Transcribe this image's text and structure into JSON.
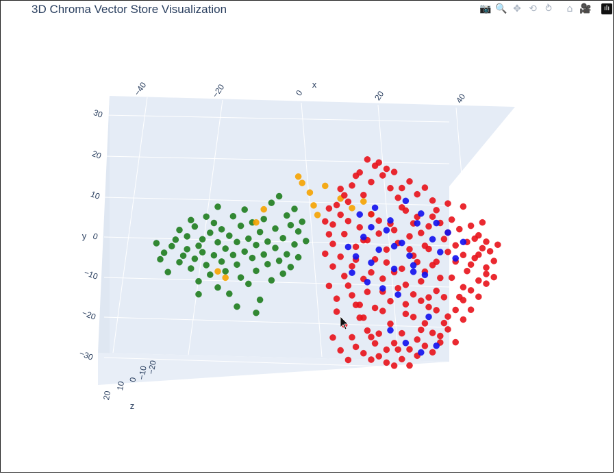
{
  "title": "3D Chroma Vector Store Visualization",
  "modebar": [
    {
      "name": "camera-icon",
      "glyph": "📷"
    },
    {
      "name": "zoom-icon",
      "glyph": "🔍"
    },
    {
      "name": "pan-icon",
      "glyph": "✥"
    },
    {
      "name": "orbit-rotation-icon",
      "glyph": "⟲"
    },
    {
      "name": "turntable-rotation-icon",
      "glyph": "⥁"
    },
    {
      "name": "home-icon",
      "glyph": "⌂"
    },
    {
      "name": "camera-last-save-icon",
      "glyph": "🎥"
    },
    {
      "name": "plotly-logo-icon",
      "glyph": "ılı"
    }
  ],
  "colors": {
    "green": "#1e7d1e",
    "orange": "#f5a300",
    "red": "#e8121a",
    "blue": "#1010ee",
    "axis_text": "#2a3f5f",
    "pane": "#e5ecf6"
  },
  "chart_data": {
    "type": "scatter",
    "title": "3D Chroma Vector Store Visualization",
    "xlabel": "x",
    "ylabel": "y",
    "zlabel": "z",
    "x_ticks": [
      "−40",
      "−20",
      "0",
      "20",
      "40"
    ],
    "y_ticks": [
      "30",
      "20",
      "10",
      "0",
      "−10",
      "−20",
      "−30"
    ],
    "z_ticks": [
      "20",
      "10",
      "0",
      "−10",
      "−20"
    ],
    "xlim": [
      -50,
      50
    ],
    "ylim": [
      -35,
      35
    ],
    "legend": "none",
    "series": [
      {
        "color": "green",
        "points": [
          [
            -35,
            -1
          ],
          [
            -34,
            1
          ],
          [
            -32,
            3
          ],
          [
            -31,
            5
          ],
          [
            -30,
            -2
          ],
          [
            -29,
            0
          ],
          [
            -28,
            2
          ],
          [
            -28,
            6
          ],
          [
            -27,
            -4
          ],
          [
            -26,
            -1
          ],
          [
            -26,
            9
          ],
          [
            -25,
            3
          ],
          [
            -25,
            -8
          ],
          [
            -24,
            1
          ],
          [
            -24,
            5
          ],
          [
            -23,
            -3
          ],
          [
            -23,
            12
          ],
          [
            -22,
            7
          ],
          [
            -22,
            -6
          ],
          [
            -21,
            0
          ],
          [
            -21,
            10
          ],
          [
            -20,
            4
          ],
          [
            -20,
            -10
          ],
          [
            -19,
            -2
          ],
          [
            -19,
            8
          ],
          [
            -18,
            2
          ],
          [
            -18,
            -5
          ],
          [
            -17,
            6
          ],
          [
            -17,
            -12
          ],
          [
            -16,
            0
          ],
          [
            -16,
            12
          ],
          [
            -15,
            -3
          ],
          [
            -15,
            4
          ],
          [
            -14,
            9
          ],
          [
            -14,
            -7
          ],
          [
            -13,
            1
          ],
          [
            -13,
            14
          ],
          [
            -12,
            -9
          ],
          [
            -12,
            5
          ],
          [
            -11,
            -1
          ],
          [
            -11,
            10
          ],
          [
            -10,
            3
          ],
          [
            -10,
            -5
          ],
          [
            -9,
            7
          ],
          [
            -9,
            -14
          ],
          [
            -8,
            0
          ],
          [
            -8,
            11
          ],
          [
            -7,
            -3
          ],
          [
            -7,
            4
          ],
          [
            -6,
            16
          ],
          [
            -6,
            -8
          ],
          [
            -5,
            2
          ],
          [
            -5,
            8
          ],
          [
            -4,
            -2
          ],
          [
            -4,
            18
          ],
          [
            -3,
            5
          ],
          [
            -3,
            -6
          ],
          [
            -2,
            12
          ],
          [
            -2,
            0
          ],
          [
            -1,
            9
          ],
          [
            -1,
            -4
          ],
          [
            0,
            3
          ],
          [
            0,
            14
          ],
          [
            1,
            7
          ],
          [
            1,
            -1
          ],
          [
            2,
            10
          ],
          [
            3,
            4
          ],
          [
            -30,
            8
          ],
          [
            -27,
            11
          ],
          [
            -33,
            -5
          ],
          [
            -25,
            -12
          ],
          [
            -20,
            15
          ],
          [
            -15,
            -16
          ],
          [
            -10,
            -18
          ],
          [
            -36,
            4
          ]
        ]
      },
      {
        "color": "orange",
        "points": [
          [
            -20,
            -5
          ],
          [
            -18,
            -7
          ],
          [
            -10,
            10
          ],
          [
            -8,
            14
          ],
          [
            1,
            24
          ],
          [
            2,
            22
          ],
          [
            4,
            19
          ],
          [
            5,
            15
          ],
          [
            6,
            12
          ],
          [
            8,
            21
          ],
          [
            12,
            17
          ],
          [
            15,
            14
          ],
          [
            18,
            16
          ],
          [
            20,
            12
          ]
        ]
      },
      {
        "color": "red",
        "points": [
          [
            10,
            3
          ],
          [
            12,
            -1
          ],
          [
            13,
            6
          ],
          [
            14,
            10
          ],
          [
            15,
            -4
          ],
          [
            16,
            2
          ],
          [
            17,
            8
          ],
          [
            18,
            -8
          ],
          [
            19,
            4
          ],
          [
            20,
            12
          ],
          [
            21,
            -2
          ],
          [
            22,
            6
          ],
          [
            23,
            -12
          ],
          [
            24,
            1
          ],
          [
            25,
            9
          ],
          [
            26,
            -6
          ],
          [
            27,
            3
          ],
          [
            28,
            14
          ],
          [
            29,
            -10
          ],
          [
            30,
            5
          ],
          [
            31,
            -1
          ],
          [
            32,
            11
          ],
          [
            33,
            -15
          ],
          [
            34,
            2
          ],
          [
            35,
            8
          ],
          [
            36,
            -4
          ],
          [
            37,
            13
          ],
          [
            38,
            -8
          ],
          [
            39,
            4
          ],
          [
            40,
            0
          ],
          [
            41,
            10
          ],
          [
            42,
            -3
          ],
          [
            43,
            7
          ],
          [
            44,
            -11
          ],
          [
            45,
            3
          ],
          [
            46,
            8
          ],
          [
            47,
            -2
          ],
          [
            48,
            5
          ],
          [
            49,
            1
          ],
          [
            50,
            -5
          ],
          [
            11,
            -18
          ],
          [
            13,
            -22
          ],
          [
            15,
            -26
          ],
          [
            17,
            -20
          ],
          [
            19,
            -24
          ],
          [
            21,
            -28
          ],
          [
            23,
            -18
          ],
          [
            25,
            -22
          ],
          [
            27,
            -30
          ],
          [
            29,
            -16
          ],
          [
            31,
            -20
          ],
          [
            33,
            -24
          ],
          [
            35,
            -14
          ],
          [
            37,
            -18
          ],
          [
            39,
            -22
          ],
          [
            12,
            20
          ],
          [
            16,
            24
          ],
          [
            20,
            22
          ],
          [
            24,
            26
          ],
          [
            28,
            20
          ],
          [
            32,
            18
          ],
          [
            36,
            16
          ],
          [
            40,
            15
          ],
          [
            44,
            14
          ],
          [
            14,
            16
          ],
          [
            18,
            18
          ],
          [
            22,
            28
          ],
          [
            26,
            25
          ],
          [
            30,
            22
          ],
          [
            34,
            20
          ],
          [
            9,
            -10
          ],
          [
            11,
            -14
          ],
          [
            13,
            -7
          ],
          [
            15,
            -13
          ],
          [
            17,
            -16
          ],
          [
            19,
            -12
          ],
          [
            21,
            -17
          ],
          [
            23,
            -8
          ],
          [
            25,
            -15
          ],
          [
            27,
            -11
          ],
          [
            29,
            -19
          ],
          [
            31,
            -13
          ],
          [
            33,
            -9
          ],
          [
            35,
            -17
          ],
          [
            37,
            -12
          ],
          [
            8,
            0
          ],
          [
            9,
            6
          ],
          [
            10,
            -4
          ],
          [
            12,
            12
          ],
          [
            14,
            -10
          ],
          [
            16,
            -16
          ],
          [
            18,
            -20
          ],
          [
            20,
            -26
          ],
          [
            22,
            -32
          ],
          [
            24,
            -34
          ],
          [
            26,
            -28
          ],
          [
            28,
            -25
          ],
          [
            30,
            -30
          ],
          [
            32,
            -27
          ],
          [
            34,
            -22
          ],
          [
            36,
            -25
          ],
          [
            38,
            -28
          ],
          [
            40,
            -20
          ],
          [
            42,
            -18
          ],
          [
            44,
            -15
          ],
          [
            46,
            -12
          ],
          [
            48,
            -9
          ],
          [
            50,
            -7
          ],
          [
            47,
            4
          ],
          [
            49,
            9
          ],
          [
            45,
            -6
          ],
          [
            43,
            -14
          ],
          [
            41,
            -8
          ],
          [
            39,
            -14
          ],
          [
            37,
            -3
          ],
          [
            35,
            1
          ],
          [
            33,
            6
          ],
          [
            31,
            9
          ],
          [
            29,
            13
          ],
          [
            27,
            17
          ],
          [
            25,
            20
          ],
          [
            23,
            24
          ],
          [
            21,
            27
          ],
          [
            19,
            29
          ],
          [
            17,
            25
          ],
          [
            15,
            21
          ],
          [
            13,
            18
          ],
          [
            11,
            15
          ],
          [
            10,
            9
          ],
          [
            9,
            14
          ],
          [
            8,
            10
          ],
          [
            16,
            -2
          ],
          [
            18,
            4
          ],
          [
            20,
            -6
          ],
          [
            22,
            10
          ],
          [
            24,
            -3
          ],
          [
            26,
            7
          ],
          [
            28,
            -5
          ],
          [
            30,
            1
          ],
          [
            32,
            -3
          ],
          [
            34,
            -6
          ],
          [
            36,
            11
          ],
          [
            38,
            9
          ],
          [
            40,
            6
          ],
          [
            42,
            2
          ],
          [
            44,
            -1
          ],
          [
            46,
            -4
          ],
          [
            48,
            -1
          ],
          [
            50,
            3
          ],
          [
            51,
            0
          ],
          [
            52,
            -3
          ],
          [
            53,
            2
          ],
          [
            10,
            -26
          ],
          [
            12,
            -30
          ],
          [
            14,
            -33
          ],
          [
            16,
            -29
          ],
          [
            18,
            -31
          ],
          [
            20,
            -33
          ],
          [
            22,
            -25
          ],
          [
            24,
            -30
          ],
          [
            26,
            -35
          ],
          [
            28,
            -33
          ],
          [
            30,
            -35
          ],
          [
            32,
            -32
          ],
          [
            34,
            -29
          ],
          [
            36,
            -31
          ],
          [
            38,
            -26
          ],
          [
            40,
            -24
          ],
          [
            42,
            -28
          ],
          [
            44,
            -21
          ],
          [
            46,
            -18
          ],
          [
            48,
            -14
          ],
          [
            50,
            -10
          ],
          [
            52,
            -8
          ]
        ]
      },
      {
        "color": "blue",
        "points": [
          [
            14,
            2
          ],
          [
            16,
            -1
          ],
          [
            18,
            5
          ],
          [
            20,
            -3
          ],
          [
            22,
            1
          ],
          [
            24,
            7
          ],
          [
            26,
            -5
          ],
          [
            28,
            3
          ],
          [
            30,
            -1
          ],
          [
            32,
            9
          ],
          [
            34,
            -7
          ],
          [
            36,
            4
          ],
          [
            38,
            0
          ],
          [
            40,
            6
          ],
          [
            42,
            -2
          ],
          [
            44,
            3
          ],
          [
            19,
            -9
          ],
          [
            23,
            -11
          ],
          [
            27,
            -13
          ],
          [
            31,
            -6
          ],
          [
            35,
            -20
          ],
          [
            25,
            -24
          ],
          [
            29,
            -28
          ],
          [
            33,
            -31
          ],
          [
            37,
            -29
          ],
          [
            17,
            12
          ],
          [
            21,
            14
          ],
          [
            25,
            10
          ],
          [
            29,
            16
          ],
          [
            33,
            12
          ],
          [
            37,
            9
          ],
          [
            15,
            -6
          ],
          [
            20,
            8
          ],
          [
            26,
            2
          ],
          [
            31,
            -4
          ]
        ]
      }
    ]
  }
}
